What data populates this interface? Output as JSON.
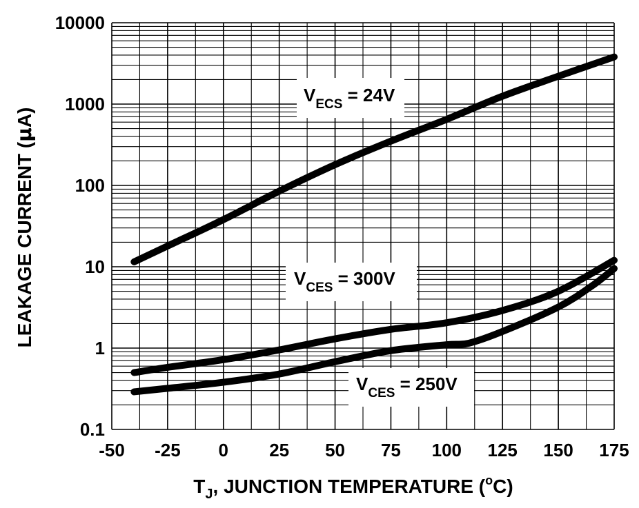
{
  "chart_data": {
    "type": "line",
    "title": "",
    "xlabel": {
      "pre": "T",
      "sub": "J",
      "mid": ", JUNCTION TEMPERATURE (",
      "sup": "o",
      "post": "C)"
    },
    "ylabel": {
      "pre": "LEAKAGE  CURRENT (",
      "mu": "μ",
      "post": "A)"
    },
    "xlim": [
      -50,
      175
    ],
    "ylim": [
      0.1,
      10000
    ],
    "yscale": "log",
    "grid": true,
    "x_ticks": [
      -50,
      -25,
      0,
      25,
      50,
      75,
      100,
      125,
      150,
      175
    ],
    "x_tick_labels": [
      "-50",
      "-25",
      "0",
      "25",
      "50",
      "75",
      "100",
      "125",
      "150",
      "175"
    ],
    "y_ticks": [
      0.1,
      1,
      10,
      100,
      1000,
      10000
    ],
    "y_tick_labels": [
      "0.1",
      "1",
      "10",
      "100",
      "1000",
      "10000"
    ],
    "series": [
      {
        "name": "V_ECS = 24V",
        "label": {
          "main": "V",
          "sub": "ECS",
          "rest": " = 24V"
        },
        "x": [
          -40,
          -25,
          0,
          25,
          50,
          75,
          100,
          125,
          150,
          175
        ],
        "y": [
          11.5,
          18,
          38,
          85,
          180,
          350,
          650,
          1250,
          2200,
          3800
        ]
      },
      {
        "name": "V_CES = 300V",
        "label": {
          "main": "V",
          "sub": "CES",
          "rest": " = 300V"
        },
        "x": [
          -40,
          -25,
          0,
          25,
          50,
          75,
          100,
          125,
          150,
          175
        ],
        "y": [
          0.5,
          0.58,
          0.72,
          0.95,
          1.3,
          1.7,
          2.05,
          2.9,
          5.0,
          12
        ]
      },
      {
        "name": "V_CES = 250V",
        "label": {
          "main": "V",
          "sub": "CES",
          "rest": " = 250V"
        },
        "x": [
          -40,
          -25,
          0,
          25,
          50,
          75,
          100,
          110,
          125,
          150,
          165,
          175
        ],
        "y": [
          0.29,
          0.32,
          0.38,
          0.48,
          0.68,
          0.93,
          1.1,
          1.15,
          1.6,
          3.2,
          5.8,
          9.5
        ]
      }
    ]
  }
}
